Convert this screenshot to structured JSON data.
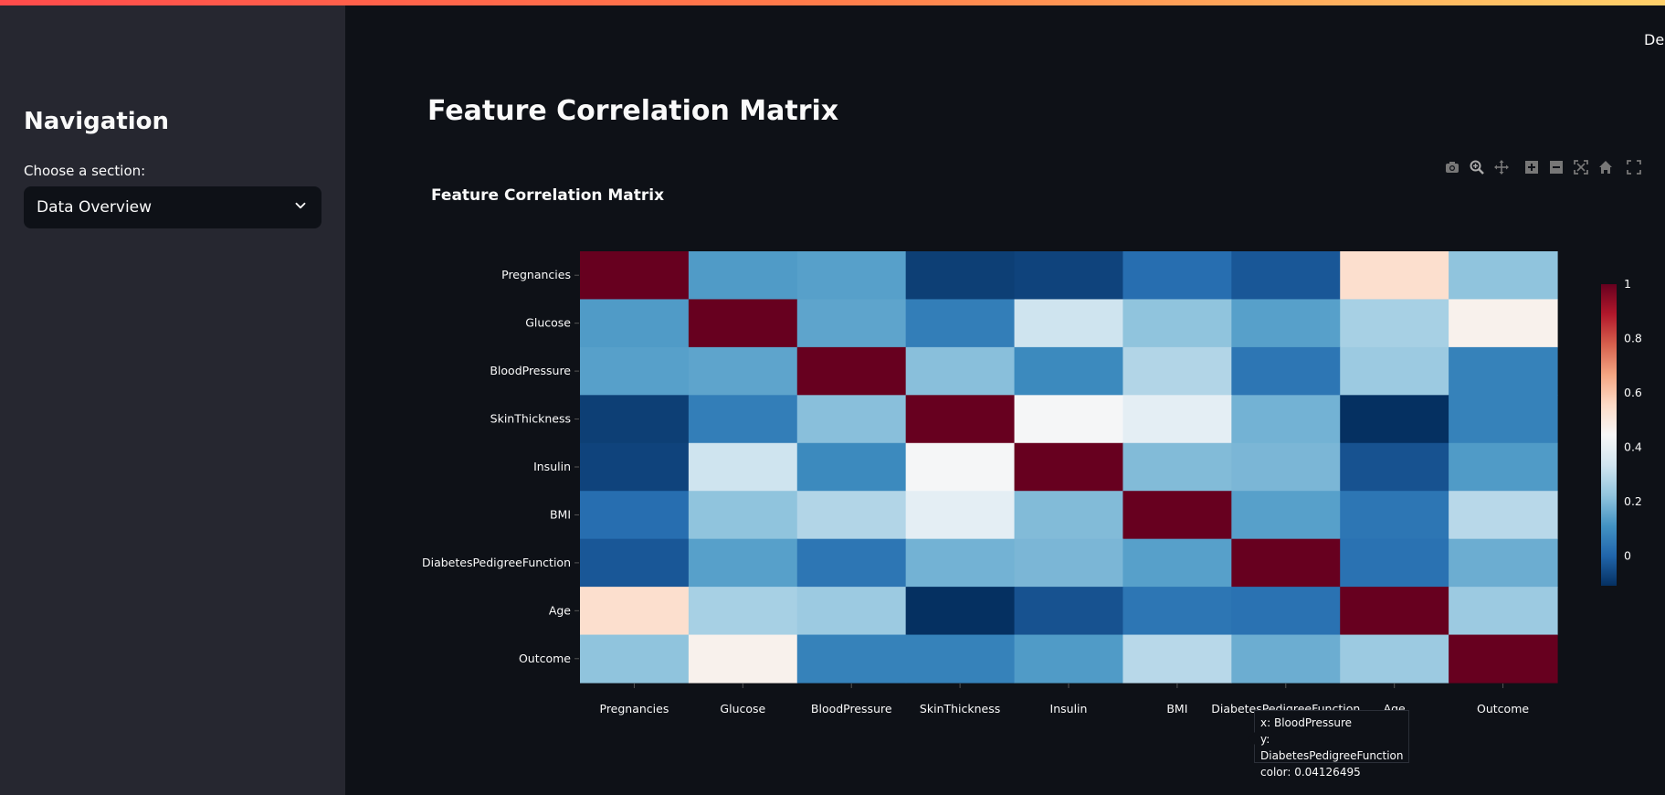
{
  "app": {
    "deploy_label": "Deploy"
  },
  "sidebar": {
    "title": "Navigation",
    "select_label": "Choose a section:",
    "selected_section": "Data Overview"
  },
  "main": {
    "page_title": "Feature Correlation Matrix"
  },
  "modebar": {
    "icons": [
      "camera-icon",
      "zoom-icon",
      "pan-icon",
      "zoom-in-icon",
      "zoom-out-icon",
      "autoscale-icon",
      "reset-axes-icon",
      "fullscreen-icon"
    ]
  },
  "tooltip": {
    "x_line": "x: BloodPressure",
    "y_line": "y: DiabetesPedigreeFunction",
    "color_line": "color: 0.04126495"
  },
  "chart_data": {
    "type": "heatmap",
    "title": "Feature Correlation Matrix",
    "x": [
      "Pregnancies",
      "Glucose",
      "BloodPressure",
      "SkinThickness",
      "Insulin",
      "BMI",
      "DiabetesPedigreeFunction",
      "Age",
      "Outcome"
    ],
    "y": [
      "Pregnancies",
      "Glucose",
      "BloodPressure",
      "SkinThickness",
      "Insulin",
      "BMI",
      "DiabetesPedigreeFunction",
      "Age",
      "Outcome"
    ],
    "z": [
      [
        1.0,
        0.13,
        0.14,
        -0.08,
        -0.07,
        0.02,
        -0.03,
        0.54,
        0.22
      ],
      [
        0.13,
        1.0,
        0.15,
        0.06,
        0.33,
        0.22,
        0.14,
        0.26,
        0.47
      ],
      [
        0.14,
        0.15,
        1.0,
        0.21,
        0.09,
        0.28,
        0.04,
        0.24,
        0.07
      ],
      [
        -0.08,
        0.06,
        0.21,
        1.0,
        0.44,
        0.39,
        0.18,
        -0.11,
        0.07
      ],
      [
        -0.07,
        0.33,
        0.09,
        0.44,
        1.0,
        0.2,
        0.19,
        -0.04,
        0.13
      ],
      [
        0.02,
        0.22,
        0.28,
        0.39,
        0.2,
        1.0,
        0.14,
        0.04,
        0.29
      ],
      [
        -0.03,
        0.14,
        0.04,
        0.18,
        0.19,
        0.14,
        1.0,
        0.03,
        0.17
      ],
      [
        0.54,
        0.26,
        0.24,
        -0.11,
        -0.04,
        0.04,
        0.03,
        1.0,
        0.24
      ],
      [
        0.22,
        0.47,
        0.07,
        0.07,
        0.13,
        0.29,
        0.17,
        0.24,
        1.0
      ]
    ],
    "zlim": [
      -0.11,
      1.0
    ],
    "colorscale": "RdBu_r",
    "colorbar_ticks": [
      0,
      0.2,
      0.4,
      0.6,
      0.8,
      1
    ],
    "colorbar_tick_labels": [
      "0",
      "0.2",
      "0.4",
      "0.6",
      "0.8",
      "1"
    ],
    "text_color": "#fafafa",
    "tick_color": "#fafafa"
  }
}
